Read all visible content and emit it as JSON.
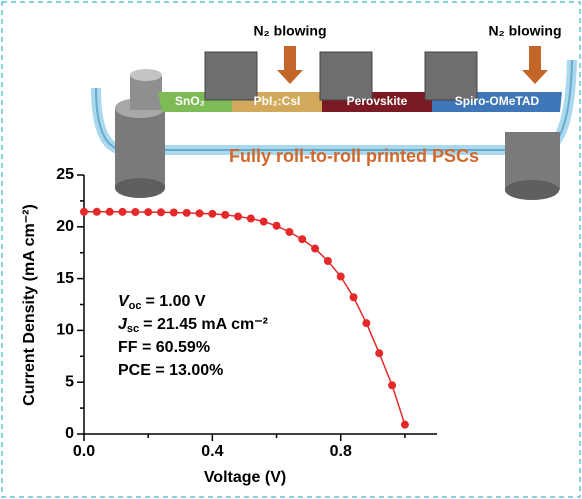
{
  "chart_data": {
    "type": "line",
    "xlabel": "Voltage (V)",
    "ylabel": "Current Density (mA cm⁻²)",
    "x": [
      0,
      0.04,
      0.08,
      0.12,
      0.16,
      0.2,
      0.24,
      0.28,
      0.32,
      0.36,
      0.4,
      0.44,
      0.48,
      0.52,
      0.56,
      0.6,
      0.64,
      0.68,
      0.72,
      0.76,
      0.8,
      0.84,
      0.88,
      0.92,
      0.96,
      1.0
    ],
    "series": [
      {
        "color": "#e3292a",
        "values": [
          21.45,
          21.45,
          21.45,
          21.44,
          21.43,
          21.42,
          21.4,
          21.38,
          21.35,
          21.3,
          21.25,
          21.15,
          21.0,
          20.8,
          20.5,
          20.1,
          19.5,
          18.8,
          17.9,
          16.7,
          15.2,
          13.2,
          10.7,
          7.8,
          4.7,
          0.9
        ]
      }
    ],
    "xlim": [
      0,
      1.1
    ],
    "ylim": [
      0,
      25
    ],
    "xticks": [
      {
        "value": 0,
        "label": "0.0"
      },
      {
        "value": 0.4,
        "label": "0.4"
      },
      {
        "value": 0.8,
        "label": "0.8"
      }
    ],
    "xminorticks": [
      0.2,
      0.6,
      1.0
    ],
    "yticks": [
      0,
      5,
      10,
      15,
      20,
      25
    ],
    "yminorticks": [
      2.5,
      7.5,
      12.5,
      17.5,
      22.5
    ],
    "annotations": [
      {
        "symbol": "V",
        "subscript": "oc",
        "text": "= 1.00 V"
      },
      {
        "symbol": "J",
        "subscript": "sc",
        "text": "= 21.45 mA cm⁻²"
      },
      {
        "text": "FF = 60.59%"
      },
      {
        "text": "PCE = 13.00%"
      }
    ]
  },
  "illustration": {
    "blowing_left": "N₂ blowing",
    "blowing_right": "N₂ blowing",
    "layers": [
      "SnO₂",
      "PbI₂:CsI",
      "Perovskite",
      "Spiro-OMeTAD"
    ],
    "caption": "Fully roll-to-roll printed PSCs"
  }
}
